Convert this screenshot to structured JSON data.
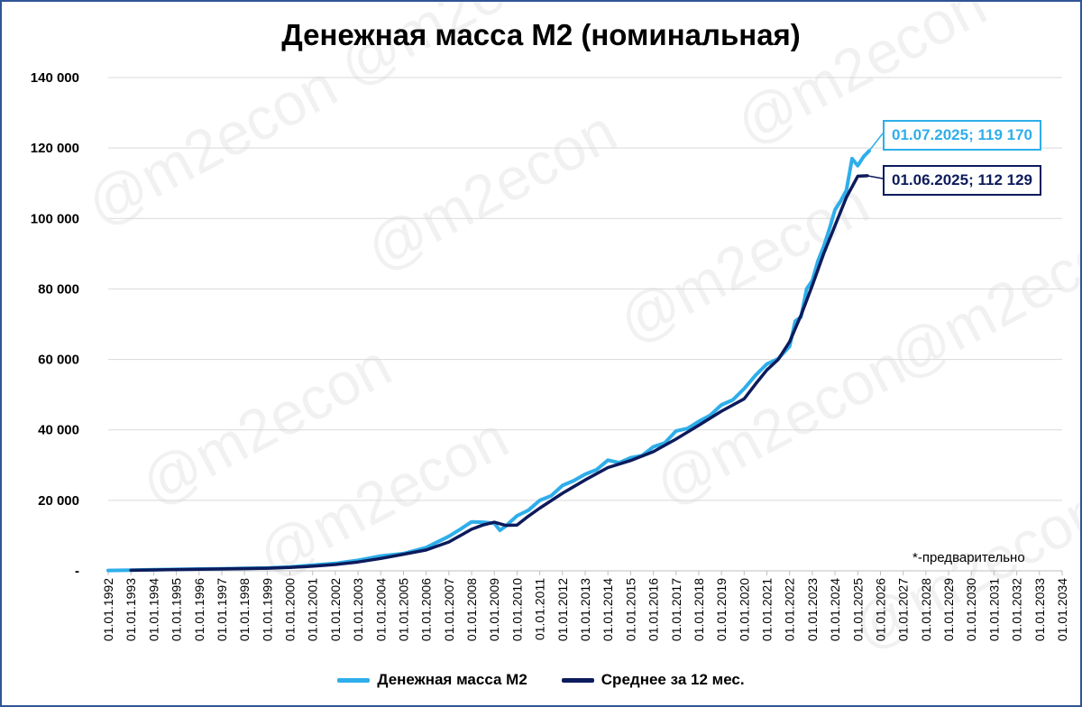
{
  "chart_data": {
    "type": "line",
    "title": "Денежная масса М2 (номинальная)",
    "note": "*-предварительно",
    "watermark": "@m2econ",
    "ylim": [
      0,
      140000
    ],
    "y_ticks": [
      "-",
      "20 000",
      "40 000",
      "60 000",
      "80 000",
      "100 000",
      "120 000",
      "140 000"
    ],
    "y_tick_values": [
      0,
      20000,
      40000,
      60000,
      80000,
      100000,
      120000,
      140000
    ],
    "x_ticks": [
      "01.01.1992",
      "01.01.1993",
      "01.01.1994",
      "01.01.1995",
      "01.01.1996",
      "01.01.1997",
      "01.01.1998",
      "01.01.1999",
      "01.01.2000",
      "01.01.2001",
      "01.01.2002",
      "01.01.2003",
      "01.01.2004",
      "01.01.2005",
      "01.01.2006",
      "01.01.2007",
      "01.01.2008",
      "01.01.2009",
      "01.01.2010",
      "01.01.2011",
      "01.01.2012",
      "01.01.2013",
      "01.01.2014",
      "01.01.2015",
      "01.01.2016",
      "01.01.2017",
      "01.01.2018",
      "01.01.2019",
      "01.01.2020",
      "01.01.2021",
      "01.01.2022",
      "01.01.2023",
      "01.01.2024",
      "01.01.2025",
      "01.01.2026",
      "01.01.2027",
      "01.01.2028",
      "01.01.2029",
      "01.01.2030",
      "01.01.2031",
      "01.01.2032",
      "01.01.2033",
      "01.01.2034"
    ],
    "grid": true,
    "legend_position": "bottom",
    "series": [
      {
        "name": "Денежная масса М2",
        "color": "#2eaeea",
        "x": [
          1992.0,
          1993.0,
          1994.0,
          1995.0,
          1996.0,
          1997.0,
          1998.0,
          1999.0,
          2000.0,
          2001.0,
          2002.0,
          2003.0,
          2004.0,
          2005.0,
          2006.0,
          2007.0,
          2007.5,
          2008.0,
          2008.5,
          2009.0,
          2009.25,
          2009.5,
          2010.0,
          2010.5,
          2011.0,
          2011.5,
          2012.0,
          2012.5,
          2013.0,
          2013.5,
          2014.0,
          2014.5,
          2015.0,
          2015.5,
          2016.0,
          2016.5,
          2017.0,
          2017.5,
          2018.0,
          2018.5,
          2019.0,
          2019.5,
          2020.0,
          2020.5,
          2021.0,
          2021.5,
          2022.0,
          2022.25,
          2022.5,
          2022.75,
          2023.0,
          2023.25,
          2023.5,
          2023.75,
          2024.0,
          2024.25,
          2024.5,
          2024.75,
          2025.0,
          2025.25,
          2025.5
        ],
        "y": [
          100,
          200,
          300,
          400,
          500,
          600,
          700,
          800,
          1100,
          1600,
          2100,
          3000,
          4200,
          4900,
          6600,
          9800,
          11800,
          13900,
          13800,
          13500,
          11500,
          12700,
          15600,
          17200,
          20000,
          21300,
          24200,
          25600,
          27400,
          28700,
          31400,
          30700,
          32100,
          32700,
          35200,
          36300,
          39700,
          40400,
          42400,
          44100,
          47100,
          48500,
          51700,
          55500,
          58700,
          60200,
          63700,
          70900,
          72000,
          80000,
          82400,
          88000,
          92000,
          97000,
          102500,
          105000,
          108000,
          117000,
          115000,
          117500,
          119170
        ]
      },
      {
        "name": "Среднее за 12 мес.",
        "color": "#0d1b5c",
        "x": [
          1993.0,
          1994.0,
          1995.0,
          1996.0,
          1997.0,
          1998.0,
          1999.0,
          2000.0,
          2001.0,
          2002.0,
          2003.0,
          2004.0,
          2005.0,
          2006.0,
          2007.0,
          2008.0,
          2008.5,
          2009.0,
          2009.5,
          2010.0,
          2010.5,
          2011.0,
          2012.0,
          2013.0,
          2014.0,
          2015.0,
          2016.0,
          2017.0,
          2018.0,
          2019.0,
          2020.0,
          2020.5,
          2021.0,
          2021.5,
          2022.0,
          2022.5,
          2023.0,
          2023.5,
          2024.0,
          2024.5,
          2025.0,
          2025.42
        ],
        "y": [
          150,
          250,
          350,
          450,
          550,
          650,
          750,
          950,
          1300,
          1800,
          2500,
          3500,
          4700,
          5900,
          8200,
          11800,
          13000,
          13800,
          12900,
          13000,
          15500,
          17800,
          22000,
          25800,
          29300,
          31300,
          33800,
          37400,
          41300,
          45300,
          48800,
          53000,
          57000,
          60000,
          65000,
          72500,
          81000,
          90000,
          98000,
          106000,
          112000,
          112129
        ]
      }
    ],
    "annotations": [
      {
        "text": "01.07.2025;  119 170",
        "series": 0,
        "date": "01.07.2025",
        "value": 119170
      },
      {
        "text": "01.06.2025;  112 129",
        "series": 1,
        "date": "01.06.2025",
        "value": 112129
      }
    ]
  }
}
